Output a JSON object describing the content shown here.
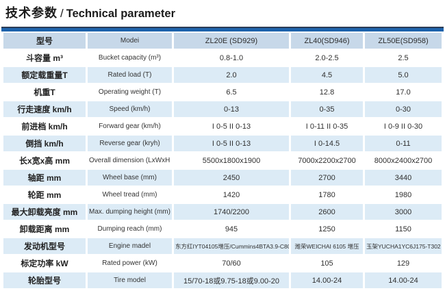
{
  "title": {
    "zh": "技术参数",
    "sep": "/",
    "en": "Technical parameter"
  },
  "colors": {
    "accent_bar_blue": "#1d63ac",
    "accent_bar_dark_edge": "#2c3c55",
    "header_bg": "#c7d8e9",
    "row_alt_bg": "#dcebf6",
    "row_bg": "#ffffff"
  },
  "table": {
    "header": {
      "model_zh": "型号",
      "model_en": "Modei",
      "models": [
        "ZL20E (SD929)",
        "ZL40(SD946)",
        "ZL50E(SD958)"
      ]
    },
    "rows": [
      {
        "name": "bucket-capacity",
        "label_zh": "斗容量 m³",
        "label_en": "Bucket capacity (m³)",
        "values": [
          "0.8-1.0",
          "2.0-2.5",
          "2.5"
        ]
      },
      {
        "name": "rated-load",
        "label_zh": "额定载重量T",
        "label_en": "Rated load (T)",
        "values": [
          "2.0",
          "4.5",
          "5.0"
        ]
      },
      {
        "name": "operating-weight",
        "label_zh": "机重T",
        "label_en": "Operating weight (T)",
        "values": [
          "6.5",
          "12.8",
          "17.0"
        ]
      },
      {
        "name": "speed",
        "label_zh": "行走速度 km/h",
        "label_en": "Speed (km/h)",
        "values": [
          "0-13",
          "0-35",
          "0-30"
        ]
      },
      {
        "name": "forward-gear",
        "label_zh": "前进档 km/h",
        "label_en": "Forward gear (km/h)",
        "values": [
          "I 0-5  II 0-13",
          "I 0-11  II 0-35",
          "I 0-9  II 0-30"
        ]
      },
      {
        "name": "reverse-gear",
        "label_zh": "倒挡 km/h",
        "label_en": "Reverse gear (kryh)",
        "values": [
          "I 0-5  II 0-13",
          "I 0-14.5",
          "0-11"
        ]
      },
      {
        "name": "overall-dimension",
        "label_zh": "长x宽x高 mm",
        "label_en": "Overall dimension (LxWxH mm)",
        "values": [
          "5500x1800x1900",
          "7000x2200x2700",
          "8000x2400x2700"
        ]
      },
      {
        "name": "wheel-base",
        "label_zh": "轴距 mm",
        "label_en": "Wheel base (mm)",
        "values": [
          "2450",
          "2700",
          "3440"
        ]
      },
      {
        "name": "wheel-tread",
        "label_zh": "轮距 mm",
        "label_en": "Wheel tread (mm)",
        "values": [
          "1420",
          "1780",
          "1980"
        ]
      },
      {
        "name": "max-dumping-height",
        "label_zh": "最大卸载亮度 mm",
        "label_en": "Max. dumping height (mm)",
        "values": [
          "1740/2200",
          "2600",
          "3000"
        ]
      },
      {
        "name": "dumping-reach",
        "label_zh": "卸载距离 mm",
        "label_en": "Dumping reach (mm)",
        "values": [
          "945",
          "1250",
          "1150"
        ]
      },
      {
        "name": "engine-model",
        "label_zh": "发动机型号",
        "label_en": "Engine madel",
        "values": [
          "东方红IYT04105增压/Cummins4BTA3.9-C80",
          "潍荣WEICHAI 6105 增压",
          "玉架YUCHA1YC6J175-T302"
        ]
      },
      {
        "name": "rated-power",
        "label_zh": "标定功率 kW",
        "label_en": "Rated power (kW)",
        "values": [
          "70/60",
          "105",
          "129"
        ]
      },
      {
        "name": "tire-model",
        "label_zh": "轮胎型号",
        "label_en": "Tire model",
        "values": [
          "15/70-18或9.75-18或9.00-20",
          "14.00-24",
          "14.00-24"
        ]
      }
    ]
  }
}
